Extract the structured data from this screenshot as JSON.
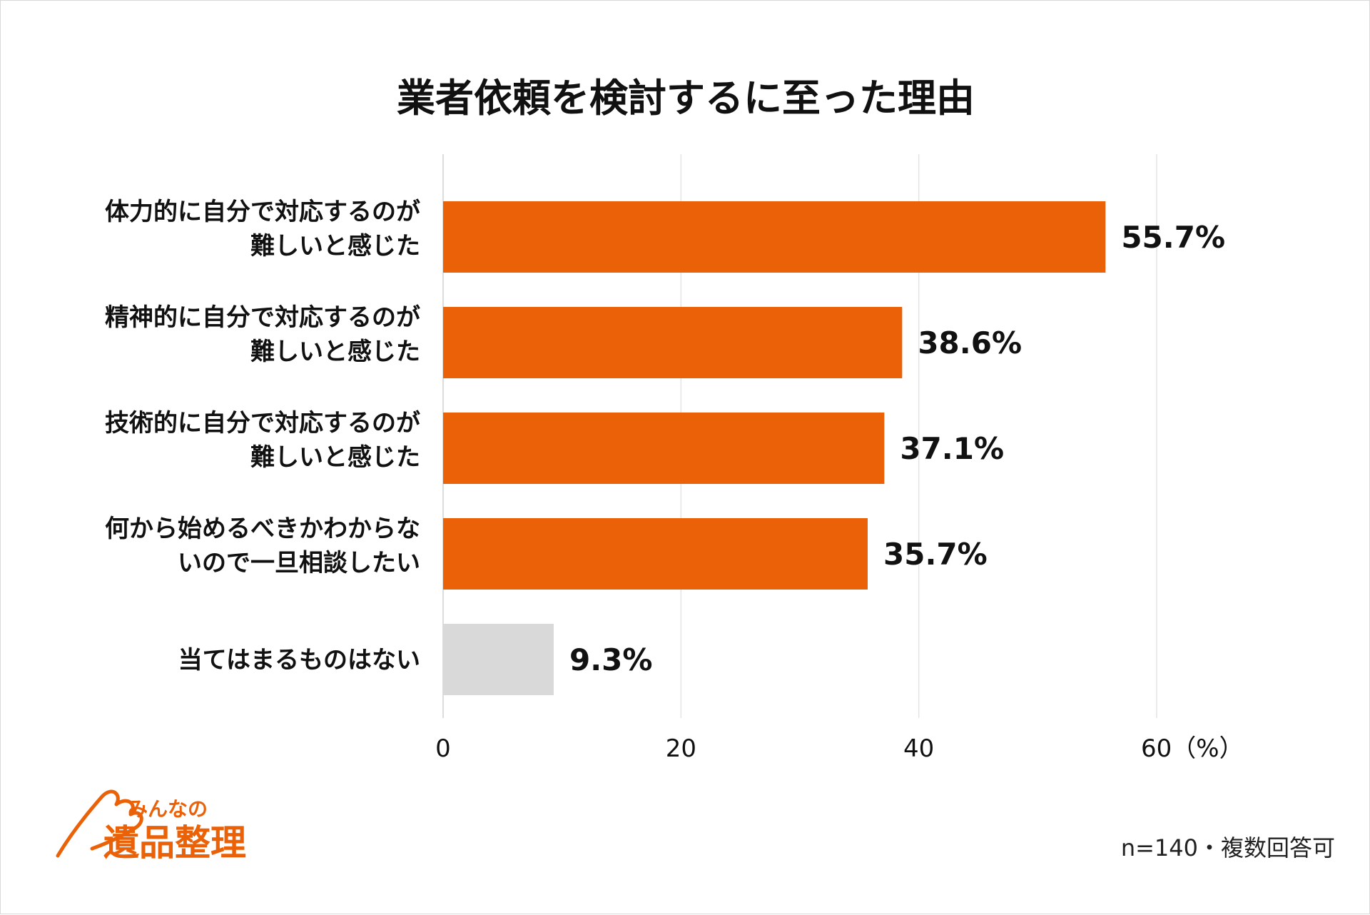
{
  "chart_data": {
    "type": "bar",
    "orientation": "horizontal",
    "title": "業者依頼を検討するに至った理由",
    "categories": [
      [
        "体力的に自分で対応するのが",
        "難しいと感じた"
      ],
      [
        "精神的に自分で対応するのが",
        "難しいと感じた"
      ],
      [
        "技術的に自分で対応するのが",
        "難しいと感じた"
      ],
      [
        "何から始めるべきかわからな",
        "いので一旦相談したい"
      ],
      [
        "当てはまるものはない"
      ]
    ],
    "values": [
      55.7,
      38.6,
      37.1,
      35.7,
      9.3
    ],
    "value_labels": [
      "55.7%",
      "38.6%",
      "37.1%",
      "35.7%",
      "9.3%"
    ],
    "bar_colors": [
      "#ea6108",
      "#ea6108",
      "#ea6108",
      "#ea6108",
      "#d9d9d9"
    ],
    "xlim": [
      0,
      66
    ],
    "ticks": [
      0,
      20,
      40,
      60
    ],
    "tick_labels": [
      "0",
      "20",
      "40",
      "60（%）"
    ],
    "grid": true
  },
  "note": "n=140・複数回答可",
  "logo": {
    "line1": "みんなの",
    "line2": "遺品整理",
    "color": "#ea6108"
  }
}
